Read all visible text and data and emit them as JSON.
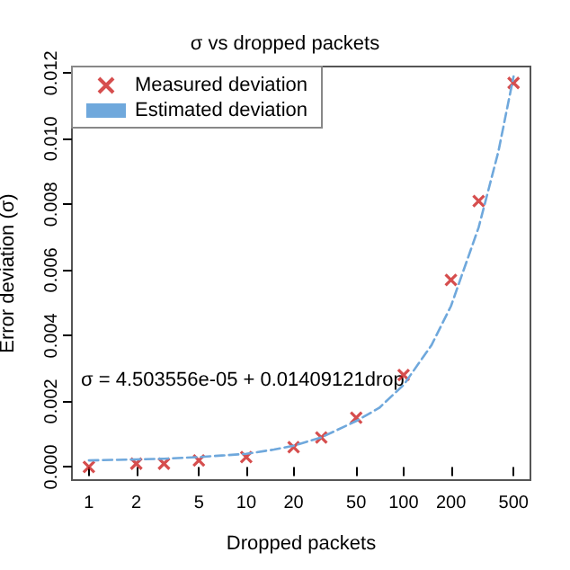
{
  "chart_data": {
    "type": "scatter",
    "title": "σ vs dropped packets",
    "xlabel": "Dropped packets",
    "ylabel": "Error deviation (σ)",
    "annotations": [
      "σ = 4.503556e-05 + 0.01409121drop"
    ],
    "log": "x",
    "xlim": [
      0.78,
      640
    ],
    "xticks": [
      1,
      2,
      5,
      10,
      20,
      50,
      100,
      200,
      500
    ],
    "ylim": [
      -0.0004,
      0.0122
    ],
    "yticks": [
      {
        "value": 0,
        "label": "0.000"
      },
      {
        "value": 0.002,
        "label": "0.002"
      },
      {
        "value": 0.004,
        "label": "0.004"
      },
      {
        "value": 0.006,
        "label": "0.006"
      },
      {
        "value": 0.008,
        "label": "0.008"
      },
      {
        "value": 0.01,
        "label": "0.010"
      },
      {
        "value": 0.012,
        "label": "0.012"
      }
    ],
    "grid": false,
    "legend": "top left",
    "series": [
      {
        "name": "Measured deviation",
        "marker": "cross",
        "color": "#cc2222",
        "x": [
          1,
          2,
          3,
          5,
          10,
          20,
          30,
          50,
          100,
          200,
          300,
          500
        ],
        "values": [
          0,
          0.0001,
          0.0001,
          0.0002,
          0.0003,
          0.0006,
          0.0009,
          0.0015,
          0.0028,
          0.0057,
          0.0081,
          0.0117
        ]
      },
      {
        "name": "Estimated deviation",
        "type": "line",
        "marker": "none",
        "line_style": "dashed",
        "color": "#6fa8dc",
        "x": [
          1,
          2,
          3,
          5,
          7,
          10,
          15,
          20,
          30,
          50,
          70,
          100,
          150,
          200,
          300,
          400,
          500
        ],
        "values": [
          0.0002,
          0.00023,
          0.00025,
          0.0003,
          0.00035,
          0.0004,
          0.00053,
          0.00065,
          0.0009,
          0.0014,
          0.0018,
          0.0025,
          0.0037,
          0.0049,
          0.0073,
          0.0096,
          0.0119
        ]
      }
    ]
  }
}
